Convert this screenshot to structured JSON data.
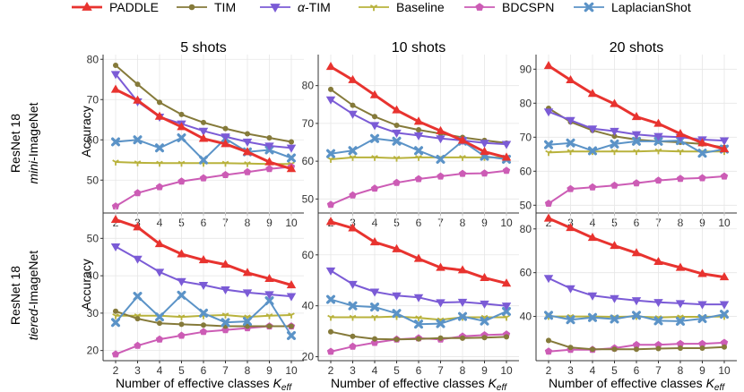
{
  "legend": [
    {
      "name": "PADDLE",
      "color": "#e8332f",
      "marker": "triangle-up",
      "italic_prefix": ""
    },
    {
      "name": "TIM",
      "color": "#857a3a",
      "marker": "circle",
      "italic_prefix": ""
    },
    {
      "name": "-TIM",
      "color": "#7b5bd6",
      "marker": "triangle-down",
      "italic_prefix": "α"
    },
    {
      "name": "Baseline",
      "color": "#b8b23c",
      "marker": "tri",
      "italic_prefix": ""
    },
    {
      "name": "BDCSPN",
      "color": "#cc5cb5",
      "marker": "pentagon",
      "italic_prefix": ""
    },
    {
      "name": "LaplacianShot",
      "color": "#5b93c7",
      "marker": "x",
      "italic_prefix": ""
    }
  ],
  "column_titles": [
    "5 shots",
    "10 shots",
    "20 shots"
  ],
  "row_labels": [
    {
      "line1": "ResNet 18",
      "italic": "mini",
      "rest": "-ImageNet"
    },
    {
      "line1": "ResNet 18",
      "italic": "tiered",
      "rest": "-ImageNet"
    }
  ],
  "ylabel": "Accuracy",
  "xlabel": {
    "text": "Number of effective classes ",
    "symbol": "K",
    "sub": "eff"
  },
  "chart_data": [
    {
      "type": "line",
      "title": "5 shots",
      "row": 0,
      "col": 0,
      "x": [
        2,
        3,
        4,
        5,
        6,
        7,
        8,
        9,
        10
      ],
      "ylim": [
        42.5,
        80.5
      ],
      "yticks": [
        50,
        60,
        70,
        80
      ],
      "series": [
        {
          "name": "PADDLE",
          "values": [
            72.5,
            69.8,
            65.8,
            63.2,
            60.3,
            59.0,
            57.0,
            54.5,
            52.8
          ]
        },
        {
          "name": "TIM",
          "values": [
            78.5,
            73.8,
            69.3,
            66.3,
            64.3,
            62.8,
            61.5,
            60.5,
            59.5
          ]
        },
        {
          "name": "α-TIM",
          "values": [
            76.3,
            69.5,
            65.7,
            64.0,
            62.2,
            60.8,
            59.5,
            58.5,
            58.0
          ]
        },
        {
          "name": "Baseline",
          "values": [
            54.5,
            54.3,
            54.2,
            54.2,
            54.2,
            54.2,
            54.1,
            54.0,
            54.0
          ]
        },
        {
          "name": "BDCSPN",
          "values": [
            43.5,
            46.8,
            48.3,
            49.7,
            50.5,
            51.3,
            52.0,
            52.8,
            53.3
          ]
        },
        {
          "name": "LaplacianShot",
          "values": [
            59.5,
            60.0,
            58.0,
            60.5,
            55.0,
            60.3,
            57.0,
            57.5,
            55.5
          ]
        }
      ]
    },
    {
      "type": "line",
      "title": "10 shots",
      "row": 0,
      "col": 1,
      "x": [
        2,
        3,
        4,
        5,
        6,
        7,
        8,
        9,
        10
      ],
      "ylim": [
        47,
        87.5
      ],
      "yticks": [
        50,
        60,
        70,
        80
      ],
      "series": [
        {
          "name": "PADDLE",
          "values": [
            85.0,
            81.5,
            77.5,
            73.5,
            70.5,
            68.0,
            65.5,
            62.5,
            61.0
          ]
        },
        {
          "name": "TIM",
          "values": [
            79.0,
            74.8,
            71.8,
            69.5,
            68.3,
            67.3,
            66.3,
            65.5,
            64.8
          ]
        },
        {
          "name": "α-TIM",
          "values": [
            76.3,
            72.5,
            69.5,
            67.5,
            66.8,
            66.0,
            65.5,
            64.8,
            64.5
          ]
        },
        {
          "name": "Baseline",
          "values": [
            60.5,
            61.0,
            61.0,
            60.8,
            61.0,
            61.0,
            61.0,
            61.0,
            61.0
          ]
        },
        {
          "name": "BDCSPN",
          "values": [
            48.5,
            51.0,
            52.8,
            54.3,
            55.3,
            56.0,
            56.7,
            56.8,
            57.5
          ]
        },
        {
          "name": "LaplacianShot",
          "values": [
            62.0,
            62.8,
            66.0,
            65.3,
            62.8,
            60.5,
            65.3,
            61.3,
            60.5
          ]
        }
      ]
    },
    {
      "type": "line",
      "title": "20 shots",
      "row": 0,
      "col": 2,
      "x": [
        2,
        3,
        4,
        5,
        6,
        7,
        8,
        9,
        10
      ],
      "ylim": [
        48.5,
        93.5
      ],
      "yticks": [
        50,
        60,
        70,
        80,
        90
      ],
      "series": [
        {
          "name": "PADDLE",
          "values": [
            91.0,
            86.8,
            82.8,
            79.8,
            76.0,
            74.0,
            71.0,
            68.3,
            66.5
          ]
        },
        {
          "name": "TIM",
          "values": [
            78.5,
            74.5,
            72.0,
            70.3,
            69.3,
            68.8,
            68.5,
            68.0,
            67.0
          ]
        },
        {
          "name": "α-TIM",
          "values": [
            77.5,
            75.0,
            72.5,
            71.8,
            70.8,
            70.3,
            70.0,
            69.3,
            69.0
          ]
        },
        {
          "name": "Baseline",
          "values": [
            65.5,
            65.8,
            65.8,
            65.8,
            65.8,
            66.0,
            65.8,
            65.8,
            65.8
          ]
        },
        {
          "name": "BDCSPN",
          "values": [
            50.5,
            54.8,
            55.3,
            55.8,
            56.5,
            57.3,
            57.8,
            58.0,
            58.5
          ]
        },
        {
          "name": "LaplacianShot",
          "values": [
            67.8,
            68.3,
            66.0,
            68.0,
            68.8,
            68.8,
            69.0,
            65.3,
            66.5
          ]
        }
      ]
    },
    {
      "type": "line",
      "title": "",
      "row": 1,
      "col": 0,
      "x": [
        2,
        3,
        4,
        5,
        6,
        7,
        8,
        9,
        10
      ],
      "ylim": [
        18,
        57.5
      ],
      "yticks": [
        20,
        30,
        40,
        50
      ],
      "series": [
        {
          "name": "PADDLE",
          "values": [
            55.0,
            53.0,
            48.5,
            45.8,
            44.2,
            43.0,
            40.8,
            39.2,
            37.5
          ]
        },
        {
          "name": "TIM",
          "values": [
            30.5,
            28.5,
            27.3,
            27.0,
            26.8,
            26.5,
            26.5,
            26.5,
            26.5
          ]
        },
        {
          "name": "α-TIM",
          "values": [
            47.8,
            44.5,
            41.0,
            38.5,
            37.5,
            36.3,
            35.5,
            35.0,
            34.5
          ]
        },
        {
          "name": "Baseline",
          "values": [
            29.3,
            29.3,
            29.3,
            29.0,
            29.3,
            29.5,
            29.0,
            29.3,
            29.5
          ]
        },
        {
          "name": "BDCSPN",
          "values": [
            19.0,
            21.3,
            23.0,
            24.0,
            25.0,
            25.5,
            26.0,
            26.5,
            26.5
          ]
        },
        {
          "name": "LaplacianShot",
          "values": [
            27.5,
            34.5,
            29.0,
            34.8,
            30.0,
            27.5,
            27.8,
            33.3,
            24.0
          ]
        }
      ]
    },
    {
      "type": "line",
      "title": "",
      "row": 1,
      "col": 1,
      "x": [
        2,
        3,
        4,
        5,
        6,
        7,
        8,
        9,
        10
      ],
      "ylim": [
        19.5,
        77.5
      ],
      "yticks": [
        20,
        40,
        60
      ],
      "series": [
        {
          "name": "PADDLE",
          "values": [
            73.0,
            70.5,
            65.0,
            62.3,
            58.5,
            55.0,
            54.0,
            51.0,
            48.8
          ]
        },
        {
          "name": "TIM",
          "values": [
            29.8,
            28.0,
            27.0,
            26.8,
            27.0,
            27.3,
            27.3,
            27.5,
            27.8
          ]
        },
        {
          "name": "α-TIM",
          "values": [
            53.8,
            48.5,
            45.5,
            44.0,
            43.3,
            41.3,
            41.5,
            40.8,
            40.0
          ]
        },
        {
          "name": "Baseline",
          "values": [
            35.5,
            35.5,
            35.5,
            35.8,
            35.3,
            34.5,
            35.5,
            35.5,
            35.5
          ]
        },
        {
          "name": "BDCSPN",
          "values": [
            22.0,
            24.0,
            25.5,
            26.8,
            27.3,
            26.8,
            28.0,
            28.5,
            28.8
          ]
        },
        {
          "name": "LaplacianShot",
          "values": [
            42.5,
            40.0,
            39.5,
            37.0,
            32.8,
            33.0,
            35.8,
            34.0,
            37.8
          ]
        }
      ]
    },
    {
      "type": "line",
      "title": "",
      "row": 1,
      "col": 2,
      "x": [
        2,
        3,
        4,
        5,
        6,
        7,
        8,
        9,
        10
      ],
      "ylim": [
        21,
        88.5
      ],
      "yticks": [
        40,
        60,
        80
      ],
      "series": [
        {
          "name": "PADDLE",
          "values": [
            84.8,
            80.5,
            76.0,
            72.3,
            69.0,
            65.0,
            62.3,
            59.5,
            58.0
          ]
        },
        {
          "name": "TIM",
          "values": [
            29.0,
            25.8,
            25.0,
            25.0,
            25.0,
            25.3,
            25.5,
            25.5,
            26.0
          ]
        },
        {
          "name": "α-TIM",
          "values": [
            57.5,
            52.8,
            49.5,
            48.3,
            47.3,
            46.5,
            46.0,
            45.5,
            45.5
          ]
        },
        {
          "name": "Baseline",
          "values": [
            40.0,
            40.0,
            40.0,
            39.8,
            40.0,
            39.5,
            39.8,
            39.8,
            40.0
          ]
        },
        {
          "name": "BDCSPN",
          "values": [
            24.0,
            24.8,
            24.8,
            25.5,
            27.0,
            27.0,
            27.5,
            27.5,
            28.0
          ]
        },
        {
          "name": "LaplacianShot",
          "values": [
            40.5,
            38.5,
            39.5,
            38.8,
            40.5,
            38.0,
            37.8,
            39.0,
            41.0
          ]
        }
      ]
    }
  ]
}
